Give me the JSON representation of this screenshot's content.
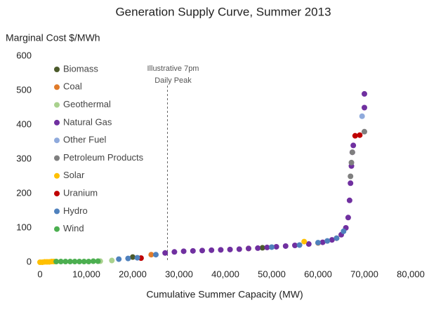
{
  "chart_data": {
    "type": "scatter",
    "title": "Generation Supply Curve, Summer 2013",
    "y_label": "Marginal Cost $/MWh",
    "x_label": "Cumulative Summer Capacity (MW)",
    "xlim": [
      0,
      80000
    ],
    "xticks": [
      0,
      {
        "value": 10000,
        "label": "10,000"
      },
      {
        "value": 20000,
        "label": "20,000"
      },
      {
        "value": 30000,
        "label": "30,000"
      },
      {
        "value": 40000,
        "label": "40,000"
      },
      {
        "value": 50000,
        "label": "50,000"
      },
      {
        "value": 60000,
        "label": "60,000"
      },
      {
        "value": 70000,
        "label": "70,000"
      },
      {
        "value": 80000,
        "label": "80,000"
      }
    ],
    "ylim": [
      0,
      600
    ],
    "yticks": [
      0,
      100,
      200,
      300,
      400,
      500,
      600
    ],
    "grid": false,
    "legend": "top-left",
    "annotations": [
      {
        "text": [
          "Illustrative 7pm",
          "Daily Peak"
        ],
        "x": 27500
      }
    ],
    "series": [
      {
        "name": "Biomass",
        "color": "#4b5a2b",
        "x": [
          20000,
          48000
        ],
        "values": [
          15,
          42
        ]
      },
      {
        "name": "Coal",
        "color": "#e07b2a",
        "x": [
          24000,
          45000,
          60000,
          64000
        ],
        "values": [
          22,
          40,
          56,
          70
        ]
      },
      {
        "name": "Geothermal",
        "color": "#a9d18e",
        "x": [
          13000,
          15500
        ],
        "values": [
          3,
          5
        ]
      },
      {
        "name": "Natural Gas",
        "color": "#7030a0",
        "x": [
          27000,
          29000,
          31000,
          33000,
          35000,
          37000,
          39000,
          41000,
          43000,
          45000,
          47000,
          49000,
          51000,
          53000,
          55000,
          58000,
          61000,
          63000,
          65000,
          66000,
          66500,
          66800,
          67000,
          67200,
          67400,
          67600,
          70000,
          70000
        ],
        "values": [
          27,
          30,
          32,
          33,
          34,
          35,
          36,
          37,
          38,
          40,
          41,
          43,
          45,
          47,
          49,
          53,
          58,
          65,
          80,
          100,
          130,
          180,
          230,
          280,
          320,
          340,
          450,
          490
        ]
      },
      {
        "name": "Other Fuel",
        "color": "#8faadc",
        "x": [
          69500
        ],
        "values": [
          425
        ]
      },
      {
        "name": "Petroleum Products",
        "color": "#7f7f7f",
        "x": [
          67000,
          67200,
          67400,
          70000
        ],
        "values": [
          250,
          290,
          320,
          380
        ]
      },
      {
        "name": "Solar",
        "color": "#ffc000",
        "x": [
          0,
          500,
          1000,
          1500,
          2000,
          2500,
          3000,
          57000
        ],
        "values": [
          0,
          0,
          1,
          1,
          1,
          2,
          2,
          60
        ]
      },
      {
        "name": "Uranium",
        "color": "#c00000",
        "x": [
          21800,
          68000,
          69000
        ],
        "values": [
          12,
          368,
          370
        ]
      },
      {
        "name": "Hydro",
        "color": "#4f81bd",
        "x": [
          17000,
          19000,
          21000,
          25000,
          50000,
          56000,
          60000,
          62000,
          64000,
          65500
        ],
        "values": [
          9,
          11,
          13,
          22,
          44,
          50,
          57,
          62,
          70,
          90
        ]
      },
      {
        "name": "Wind",
        "color": "#4caf50",
        "x": [
          3500,
          4500,
          5500,
          6500,
          7500,
          8500,
          9500,
          10500,
          11500,
          12500
        ],
        "values": [
          2,
          2,
          2,
          2,
          2,
          2,
          2,
          2,
          3,
          3
        ]
      }
    ]
  }
}
